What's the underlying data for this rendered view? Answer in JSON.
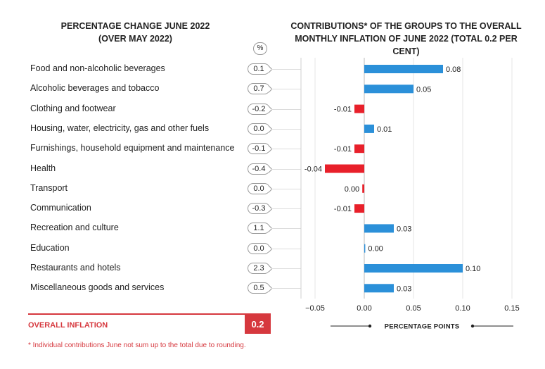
{
  "left_title": [
    "PERCENTAGE CHANGE JUNE 2022",
    "(OVER MAY 2022)"
  ],
  "right_title": [
    "CONTRIBUTIONS* OF THE GROUPS TO THE OVERALL",
    "MONTHLY INFLATION OF JUNE 2022 (TOTAL 0.2 PER CENT)"
  ],
  "percent_symbol": "%",
  "overall": {
    "label": "OVERALL INFLATION",
    "value": "0.2"
  },
  "footnote": "* Individual contributions June not sum up to the total due to rounding.",
  "colors": {
    "positive": "#2b90d9",
    "negative": "#e8202a",
    "accent": "#d6383e"
  },
  "chart_data": {
    "type": "bar",
    "orientation": "horizontal",
    "categories": [
      "Food and non-alcoholic beverages",
      "Alcoholic beverages and tobacco",
      "Clothing and footwear",
      "Housing, water, electricity, gas and other fuels",
      "Furnishings, household equipment and maintenance",
      "Health",
      "Transport",
      "Communication",
      "Recreation and culture",
      "Education",
      "Restaurants and hotels",
      "Miscellaneous goods and services"
    ],
    "percentage_change": [
      "0.1",
      "0.7",
      "-0.2",
      "0.0",
      "-0.1",
      "-0.4",
      "0.0",
      "-0.3",
      "1.1",
      "0.0",
      "2.3",
      "0.5"
    ],
    "values": [
      0.08,
      0.05,
      -0.01,
      0.01,
      -0.01,
      -0.04,
      -0.002,
      -0.01,
      0.03,
      0.001,
      0.1,
      0.03
    ],
    "value_labels": [
      "0.08",
      "0.05",
      "-0.01",
      "0.01",
      "-0.01",
      "-0.04",
      "0.00",
      "-0.01",
      "0.03",
      "0.00",
      "0.10",
      "0.03"
    ],
    "xlabel": "PERCENTAGE POINTS",
    "xlim": [
      -0.05,
      0.15
    ],
    "xticks": [
      -0.05,
      0.0,
      0.05,
      0.1,
      0.15
    ],
    "xtick_labels": [
      "−0.05",
      "0.00",
      "0.05",
      "0.10",
      "0.15"
    ],
    "grid": true
  }
}
